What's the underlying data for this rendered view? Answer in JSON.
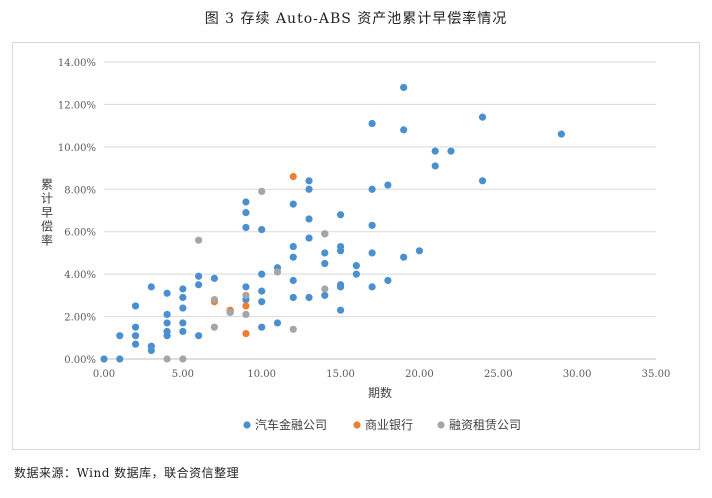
{
  "figure": {
    "title": "图 3    存续 Auto-ABS 资产池累计早偿率情况",
    "source": "数据来源：Wind 数据库，联合资信整理"
  },
  "chart_data": {
    "type": "scatter",
    "title": "",
    "xlabel": "期数",
    "ylabel": "累计早偿率",
    "xlim": [
      0,
      35
    ],
    "ylim": [
      0,
      0.14
    ],
    "x_ticks": [
      "0.00",
      "5.00",
      "10.00",
      "15.00",
      "20.00",
      "25.00",
      "30.00",
      "35.00"
    ],
    "y_ticks": [
      "0.00%",
      "2.00%",
      "4.00%",
      "6.00%",
      "8.00%",
      "10.00%",
      "12.00%",
      "14.00%"
    ],
    "grid": "horizontal",
    "legend_position": "bottom",
    "series": [
      {
        "name": "汽车金融公司",
        "color": "#4a90d0",
        "points": [
          [
            0,
            0.0
          ],
          [
            1,
            0.0
          ],
          [
            1,
            0.011
          ],
          [
            2,
            0.007
          ],
          [
            2,
            0.011
          ],
          [
            2,
            0.015
          ],
          [
            2,
            0.025
          ],
          [
            3,
            0.004
          ],
          [
            3,
            0.006
          ],
          [
            3,
            0.034
          ],
          [
            4,
            0.011
          ],
          [
            4,
            0.013
          ],
          [
            4,
            0.017
          ],
          [
            4,
            0.021
          ],
          [
            4,
            0.031
          ],
          [
            5,
            0.013
          ],
          [
            5,
            0.017
          ],
          [
            5,
            0.024
          ],
          [
            5,
            0.029
          ],
          [
            5,
            0.033
          ],
          [
            6,
            0.011
          ],
          [
            6,
            0.035
          ],
          [
            6,
            0.039
          ],
          [
            7,
            0.038
          ],
          [
            8,
            0.022
          ],
          [
            9,
            0.028
          ],
          [
            9,
            0.034
          ],
          [
            9,
            0.062
          ],
          [
            9,
            0.069
          ],
          [
            9,
            0.074
          ],
          [
            10,
            0.015
          ],
          [
            10,
            0.027
          ],
          [
            10,
            0.032
          ],
          [
            10,
            0.04
          ],
          [
            10,
            0.061
          ],
          [
            11,
            0.017
          ],
          [
            11,
            0.043
          ],
          [
            12,
            0.029
          ],
          [
            12,
            0.037
          ],
          [
            12,
            0.048
          ],
          [
            12,
            0.053
          ],
          [
            12,
            0.073
          ],
          [
            13,
            0.029
          ],
          [
            13,
            0.057
          ],
          [
            13,
            0.066
          ],
          [
            13,
            0.08
          ],
          [
            13,
            0.084
          ],
          [
            14,
            0.03
          ],
          [
            14,
            0.045
          ],
          [
            14,
            0.05
          ],
          [
            14,
            0.059
          ],
          [
            15,
            0.023
          ],
          [
            15,
            0.034
          ],
          [
            15,
            0.035
          ],
          [
            15,
            0.051
          ],
          [
            15,
            0.053
          ],
          [
            15,
            0.068
          ],
          [
            16,
            0.04
          ],
          [
            16,
            0.044
          ],
          [
            17,
            0.034
          ],
          [
            17,
            0.05
          ],
          [
            17,
            0.063
          ],
          [
            17,
            0.08
          ],
          [
            17,
            0.111
          ],
          [
            18,
            0.037
          ],
          [
            18,
            0.082
          ],
          [
            19,
            0.048
          ],
          [
            19,
            0.108
          ],
          [
            19,
            0.128
          ],
          [
            20,
            0.051
          ],
          [
            21,
            0.091
          ],
          [
            21,
            0.098
          ],
          [
            22,
            0.098
          ],
          [
            24,
            0.084
          ],
          [
            24,
            0.114
          ],
          [
            29,
            0.106
          ]
        ]
      },
      {
        "name": "商业银行",
        "color": "#ed7d31",
        "points": [
          [
            7,
            0.027
          ],
          [
            8,
            0.023
          ],
          [
            9,
            0.012
          ],
          [
            9,
            0.025
          ],
          [
            12,
            0.086
          ]
        ]
      },
      {
        "name": "融资租赁公司",
        "color": "#a5a5a5",
        "points": [
          [
            4,
            0.0
          ],
          [
            5,
            0.0
          ],
          [
            6,
            0.056
          ],
          [
            7,
            0.015
          ],
          [
            7,
            0.028
          ],
          [
            8,
            0.022
          ],
          [
            9,
            0.021
          ],
          [
            9,
            0.03
          ],
          [
            10,
            0.079
          ],
          [
            11,
            0.041
          ],
          [
            12,
            0.014
          ],
          [
            14,
            0.033
          ],
          [
            14,
            0.059
          ]
        ]
      }
    ]
  }
}
